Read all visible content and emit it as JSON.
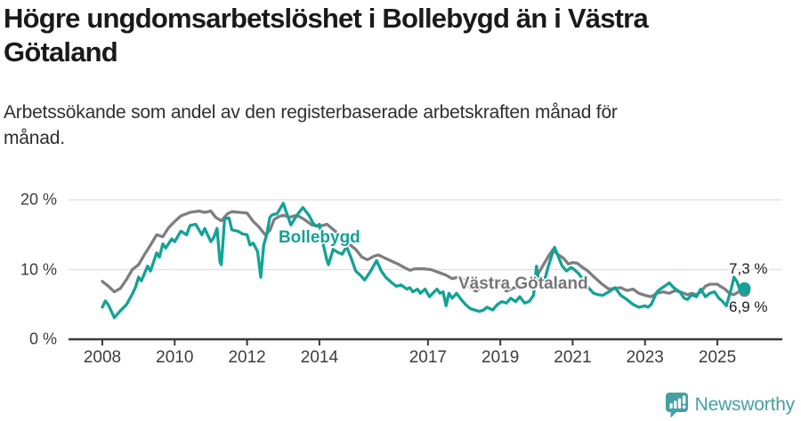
{
  "header": {
    "title": "Högre ungdomsarbetslöshet i Bollebygd än i Västra Götaland",
    "title_lines": [
      "Högre ungdomsarbetslöshet i Bollebygd än i Västra",
      "Götaland"
    ],
    "subtitle": "Arbetssökande som andel av den registerbaserade arbetskraften månad för månad.",
    "subtitle_lines": [
      "Arbetssökande som andel av den registerbaserade arbetskraften månad för",
      "månad."
    ]
  },
  "colors": {
    "teal_line": "#13a296",
    "gray_line": "#7e7e82",
    "label_gray": "#76767a",
    "brand_teal": "#46a0a3",
    "grid": "#e2e2e2",
    "axis": "#3a3a3a",
    "tick_text": "#3d3d3d",
    "value_text": "#1a1a1a"
  },
  "footer": {
    "brand": "Newsworthy",
    "icon": "newsworthy-speech-bubble-bar-chart-icon"
  },
  "chart_data": {
    "type": "line",
    "title": "Högre ungdomsarbetslöshet i Bollebygd än i Västra Götaland",
    "subtitle": "Arbetssökande som andel av den registerbaserade arbetskraften månad för månad.",
    "unit": "% av registerbaserad arbetskraft",
    "grid": "horizontal-only",
    "legend": "direct-labels-on-lines",
    "x_axis": {
      "range": [
        2007.9,
        2026.1
      ],
      "ticks": [
        2008,
        2010,
        2012,
        2014,
        2017,
        2019,
        2021,
        2023,
        2025
      ]
    },
    "y_axis": {
      "range": [
        0,
        21
      ],
      "ticks": [
        {
          "value": 0,
          "label": "0 %"
        },
        {
          "value": 10,
          "label": "10 %"
        },
        {
          "value": 20,
          "label": "20 %"
        }
      ]
    },
    "series": [
      {
        "name": "Västra Götaland",
        "color": "#7e7e82",
        "end_value_label": "6,9 %",
        "end_dot_radius": 6.5,
        "points": [
          [
            2008.0,
            8.3
          ],
          [
            2008.17,
            7.6
          ],
          [
            2008.33,
            6.8
          ],
          [
            2008.5,
            7.3
          ],
          [
            2008.67,
            8.6
          ],
          [
            2008.83,
            10.0
          ],
          [
            2009.0,
            10.7
          ],
          [
            2009.17,
            12.2
          ],
          [
            2009.33,
            13.5
          ],
          [
            2009.5,
            15.0
          ],
          [
            2009.67,
            14.7
          ],
          [
            2009.83,
            16.0
          ],
          [
            2010.0,
            16.9
          ],
          [
            2010.17,
            17.7
          ],
          [
            2010.42,
            18.2
          ],
          [
            2010.67,
            18.4
          ],
          [
            2010.83,
            18.2
          ],
          [
            2011.0,
            18.4
          ],
          [
            2011.13,
            17.5
          ],
          [
            2011.29,
            17.0
          ],
          [
            2011.46,
            18.0
          ],
          [
            2011.58,
            18.3
          ],
          [
            2011.79,
            18.2
          ],
          [
            2012.0,
            18.1
          ],
          [
            2012.17,
            16.9
          ],
          [
            2012.33,
            16.1
          ],
          [
            2012.5,
            15.0
          ],
          [
            2012.63,
            15.6
          ],
          [
            2012.75,
            17.2
          ],
          [
            2012.88,
            17.6
          ],
          [
            2013.0,
            17.8
          ],
          [
            2013.17,
            17.5
          ],
          [
            2013.38,
            17.8
          ],
          [
            2013.58,
            17.2
          ],
          [
            2013.79,
            16.4
          ],
          [
            2014.0,
            16.2
          ],
          [
            2014.21,
            16.5
          ],
          [
            2014.46,
            15.4
          ],
          [
            2014.71,
            14.2
          ],
          [
            2014.88,
            13.4
          ],
          [
            2015.0,
            12.9
          ],
          [
            2015.17,
            11.8
          ],
          [
            2015.33,
            11.4
          ],
          [
            2015.5,
            11.9
          ],
          [
            2015.63,
            12.1
          ],
          [
            2015.79,
            11.7
          ],
          [
            2016.0,
            11.2
          ],
          [
            2016.17,
            10.8
          ],
          [
            2016.38,
            10.2
          ],
          [
            2016.5,
            9.9
          ],
          [
            2016.63,
            10.1
          ],
          [
            2016.88,
            10.1
          ],
          [
            2017.08,
            10.0
          ],
          [
            2017.29,
            9.6
          ],
          [
            2017.5,
            9.2
          ],
          [
            2017.67,
            8.7
          ],
          [
            2017.83,
            8.9
          ],
          [
            2018.0,
            8.5
          ],
          [
            2018.17,
            7.4
          ],
          [
            2018.33,
            6.9
          ],
          [
            2018.5,
            7.6
          ],
          [
            2018.75,
            8.0
          ],
          [
            2019.0,
            7.8
          ],
          [
            2019.17,
            6.9
          ],
          [
            2019.38,
            7.4
          ],
          [
            2019.63,
            7.8
          ],
          [
            2019.83,
            8.1
          ],
          [
            2020.0,
            9.0
          ],
          [
            2020.17,
            10.5
          ],
          [
            2020.33,
            11.9
          ],
          [
            2020.46,
            12.9
          ],
          [
            2020.58,
            12.2
          ],
          [
            2020.75,
            11.6
          ],
          [
            2020.88,
            10.8
          ],
          [
            2021.0,
            11.0
          ],
          [
            2021.13,
            10.9
          ],
          [
            2021.25,
            10.4
          ],
          [
            2021.42,
            9.8
          ],
          [
            2021.58,
            9.0
          ],
          [
            2021.79,
            8.0
          ],
          [
            2022.0,
            7.2
          ],
          [
            2022.17,
            7.3
          ],
          [
            2022.33,
            7.4
          ],
          [
            2022.5,
            7.0
          ],
          [
            2022.67,
            7.2
          ],
          [
            2022.83,
            6.6
          ],
          [
            2023.0,
            6.3
          ],
          [
            2023.17,
            6.1
          ],
          [
            2023.33,
            6.6
          ],
          [
            2023.5,
            6.8
          ],
          [
            2023.67,
            6.6
          ],
          [
            2023.83,
            7.0
          ],
          [
            2023.96,
            6.8
          ],
          [
            2024.08,
            6.6
          ],
          [
            2024.17,
            6.4
          ],
          [
            2024.29,
            6.6
          ],
          [
            2024.42,
            6.4
          ],
          [
            2024.54,
            6.8
          ],
          [
            2024.67,
            7.6
          ],
          [
            2024.79,
            7.9
          ],
          [
            2025.0,
            7.9
          ],
          [
            2025.08,
            7.6
          ],
          [
            2025.21,
            7.2
          ],
          [
            2025.33,
            6.6
          ],
          [
            2025.46,
            6.4
          ],
          [
            2025.58,
            6.8
          ],
          [
            2025.75,
            6.9
          ]
        ]
      },
      {
        "name": "Bollebygd",
        "color": "#13a296",
        "end_value_label": "7,3 %",
        "end_dot_radius": 7,
        "points": [
          [
            2008.0,
            4.6
          ],
          [
            2008.08,
            5.5
          ],
          [
            2008.17,
            4.9
          ],
          [
            2008.33,
            3.1
          ],
          [
            2008.5,
            4.1
          ],
          [
            2008.67,
            5.0
          ],
          [
            2008.83,
            6.5
          ],
          [
            2008.92,
            7.5
          ],
          [
            2009.0,
            8.9
          ],
          [
            2009.08,
            8.4
          ],
          [
            2009.25,
            10.5
          ],
          [
            2009.33,
            9.8
          ],
          [
            2009.5,
            12.4
          ],
          [
            2009.58,
            11.8
          ],
          [
            2009.67,
            13.7
          ],
          [
            2009.75,
            13.1
          ],
          [
            2009.92,
            14.4
          ],
          [
            2010.0,
            14.0
          ],
          [
            2010.17,
            15.5
          ],
          [
            2010.33,
            15.0
          ],
          [
            2010.42,
            16.3
          ],
          [
            2010.58,
            16.5
          ],
          [
            2010.75,
            15.0
          ],
          [
            2010.83,
            15.9
          ],
          [
            2011.0,
            14.0
          ],
          [
            2011.08,
            14.6
          ],
          [
            2011.17,
            15.9
          ],
          [
            2011.25,
            11.1
          ],
          [
            2011.29,
            10.7
          ],
          [
            2011.38,
            17.3
          ],
          [
            2011.5,
            17.4
          ],
          [
            2011.58,
            15.7
          ],
          [
            2011.75,
            15.5
          ],
          [
            2011.88,
            15.1
          ],
          [
            2012.0,
            15.0
          ],
          [
            2012.08,
            13.5
          ],
          [
            2012.17,
            13.8
          ],
          [
            2012.29,
            12.6
          ],
          [
            2012.38,
            8.9
          ],
          [
            2012.46,
            13.5
          ],
          [
            2012.54,
            15.0
          ],
          [
            2012.63,
            17.5
          ],
          [
            2012.71,
            17.9
          ],
          [
            2012.83,
            18.0
          ],
          [
            2013.0,
            19.5
          ],
          [
            2013.08,
            18.3
          ],
          [
            2013.13,
            17.6
          ],
          [
            2013.21,
            16.4
          ],
          [
            2013.38,
            17.8
          ],
          [
            2013.54,
            18.9
          ],
          [
            2013.71,
            17.8
          ],
          [
            2013.83,
            16.6
          ],
          [
            2013.92,
            16.2
          ],
          [
            2014.0,
            16.5
          ],
          [
            2014.13,
            13.0
          ],
          [
            2014.21,
            11.3
          ],
          [
            2014.25,
            10.7
          ],
          [
            2014.38,
            12.9
          ],
          [
            2014.5,
            12.5
          ],
          [
            2014.63,
            12.2
          ],
          [
            2014.75,
            13.3
          ],
          [
            2014.88,
            11.6
          ],
          [
            2015.0,
            9.8
          ],
          [
            2015.13,
            9.2
          ],
          [
            2015.25,
            8.5
          ],
          [
            2015.42,
            9.8
          ],
          [
            2015.58,
            11.3
          ],
          [
            2015.71,
            9.8
          ],
          [
            2015.83,
            8.9
          ],
          [
            2016.0,
            8.1
          ],
          [
            2016.13,
            7.6
          ],
          [
            2016.25,
            7.8
          ],
          [
            2016.42,
            7.2
          ],
          [
            2016.5,
            7.4
          ],
          [
            2016.58,
            6.8
          ],
          [
            2016.71,
            7.2
          ],
          [
            2016.79,
            6.6
          ],
          [
            2016.92,
            7.2
          ],
          [
            2017.04,
            6.1
          ],
          [
            2017.17,
            6.8
          ],
          [
            2017.25,
            7.2
          ],
          [
            2017.33,
            6.6
          ],
          [
            2017.42,
            6.8
          ],
          [
            2017.5,
            4.8
          ],
          [
            2017.58,
            6.6
          ],
          [
            2017.67,
            5.9
          ],
          [
            2017.79,
            6.6
          ],
          [
            2017.92,
            5.7
          ],
          [
            2018.04,
            5.0
          ],
          [
            2018.17,
            4.4
          ],
          [
            2018.29,
            4.2
          ],
          [
            2018.42,
            4.0
          ],
          [
            2018.54,
            4.2
          ],
          [
            2018.63,
            4.6
          ],
          [
            2018.79,
            4.2
          ],
          [
            2018.92,
            5.0
          ],
          [
            2019.04,
            5.4
          ],
          [
            2019.17,
            5.2
          ],
          [
            2019.29,
            5.9
          ],
          [
            2019.42,
            5.4
          ],
          [
            2019.54,
            6.1
          ],
          [
            2019.67,
            5.2
          ],
          [
            2019.79,
            5.4
          ],
          [
            2019.92,
            6.3
          ],
          [
            2020.0,
            10.5
          ],
          [
            2020.08,
            7.5
          ],
          [
            2020.17,
            8.2
          ],
          [
            2020.25,
            9.0
          ],
          [
            2020.33,
            10.5
          ],
          [
            2020.42,
            12.0
          ],
          [
            2020.5,
            13.2
          ],
          [
            2020.63,
            11.5
          ],
          [
            2020.71,
            10.5
          ],
          [
            2020.83,
            9.8
          ],
          [
            2020.96,
            10.3
          ],
          [
            2021.04,
            10.0
          ],
          [
            2021.17,
            9.4
          ],
          [
            2021.29,
            8.5
          ],
          [
            2021.42,
            7.5
          ],
          [
            2021.58,
            6.6
          ],
          [
            2021.71,
            6.4
          ],
          [
            2021.83,
            6.3
          ],
          [
            2022.0,
            6.8
          ],
          [
            2022.17,
            7.4
          ],
          [
            2022.33,
            6.3
          ],
          [
            2022.5,
            5.7
          ],
          [
            2022.67,
            5.0
          ],
          [
            2022.83,
            4.6
          ],
          [
            2023.0,
            4.8
          ],
          [
            2023.08,
            4.6
          ],
          [
            2023.17,
            5.0
          ],
          [
            2023.33,
            6.8
          ],
          [
            2023.42,
            7.2
          ],
          [
            2023.54,
            7.6
          ],
          [
            2023.67,
            8.1
          ],
          [
            2023.79,
            7.4
          ],
          [
            2023.96,
            6.8
          ],
          [
            2024.08,
            5.9
          ],
          [
            2024.17,
            5.7
          ],
          [
            2024.29,
            6.4
          ],
          [
            2024.42,
            6.1
          ],
          [
            2024.54,
            7.2
          ],
          [
            2024.67,
            6.1
          ],
          [
            2024.79,
            6.6
          ],
          [
            2024.92,
            6.8
          ],
          [
            2025.04,
            5.9
          ],
          [
            2025.13,
            5.5
          ],
          [
            2025.25,
            4.8
          ],
          [
            2025.38,
            7.2
          ],
          [
            2025.46,
            8.9
          ],
          [
            2025.54,
            8.3
          ],
          [
            2025.63,
            6.9
          ],
          [
            2025.75,
            7.3
          ]
        ]
      }
    ],
    "annotations": [
      {
        "text": "Bollebygd",
        "x_year": 2012.87,
        "y_pct": 15.9,
        "kind": "series-label",
        "color": "#13a296"
      },
      {
        "text": "Västra Götaland",
        "x_year": 2017.84,
        "y_pct": 9.3,
        "kind": "series-label",
        "color": "#76767a"
      },
      {
        "text": "7,3 %",
        "x_year": 2025.32,
        "y_pct": 11.3,
        "kind": "value-label",
        "color": "#1a1a1a"
      },
      {
        "text": "6,9 %",
        "x_year": 2025.32,
        "y_pct": 5.9,
        "kind": "value-label",
        "color": "#1a1a1a"
      }
    ],
    "end_values": {
      "Bollebygd": "7,3 %",
      "Västra Götaland": "6,9 %"
    }
  }
}
